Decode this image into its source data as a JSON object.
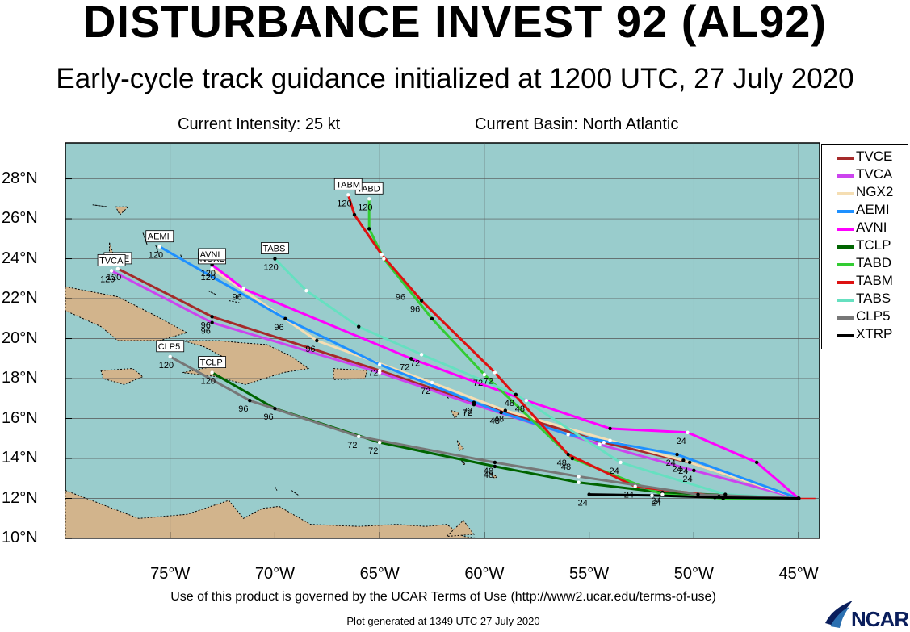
{
  "title": "DISTURBANCE INVEST 92 (AL92)",
  "subtitle": "Early-cycle track guidance initialized at 1200 UTC, 27 July 2020",
  "current_intensity": "Current Intensity: 25 kt",
  "current_basin": "Current Basin: North Atlantic",
  "terms": "Use of this product is governed by the UCAR Terms of Use (http://www2.ucar.edu/terms-of-use)",
  "generated": "Plot generated at 1349 UTC   27 July 2020",
  "logo_text": "NCAR",
  "colors": {
    "ocean": "#99cccc",
    "land": "#d2b48c",
    "grid": "#555555"
  },
  "chart_data": {
    "type": "line",
    "lon_range": [
      -80,
      -44
    ],
    "lat_range": [
      10,
      29.8
    ],
    "x_ticks": [
      -75,
      -70,
      -65,
      -60,
      -55,
      -50,
      -45
    ],
    "x_tick_labels": [
      "75°W",
      "70°W",
      "65°W",
      "60°W",
      "55°W",
      "50°W",
      "45°W"
    ],
    "y_ticks": [
      10,
      12,
      14,
      16,
      18,
      20,
      22,
      24,
      26,
      28
    ],
    "y_tick_labels": [
      "10°N",
      "12°N",
      "14°N",
      "16°N",
      "18°N",
      "20°N",
      "22°N",
      "24°N",
      "26°N",
      "28°N"
    ],
    "legend_position": "right",
    "series": [
      {
        "name": "TVCE",
        "color": "#a52a2a",
        "end_label": "TVCE",
        "points": [
          [
            -45,
            12
          ],
          [
            -50.2,
            13.8
          ],
          [
            -54.3,
            14.8
          ],
          [
            -60.5,
            16.8
          ],
          [
            -65,
            18.4
          ],
          [
            -73,
            21.1
          ],
          [
            -77.5,
            23.5
          ]
        ],
        "hour_labels": [
          [
            -50.2,
            13.8,
            "24"
          ],
          [
            -60.5,
            16.8,
            "72"
          ],
          [
            -73,
            21.1,
            "96"
          ],
          [
            -77.5,
            23.5,
            "120"
          ]
        ]
      },
      {
        "name": "TVCA",
        "color": "#cc44ee",
        "end_label": "TVCA",
        "points": [
          [
            -45,
            12
          ],
          [
            -50,
            13.4
          ],
          [
            -54.5,
            14.7
          ],
          [
            -60.5,
            16.7
          ],
          [
            -65,
            18.3
          ],
          [
            -73,
            20.8
          ],
          [
            -77.8,
            23.4
          ]
        ],
        "hour_labels": [
          [
            -50,
            13.4,
            "24"
          ],
          [
            -60.5,
            16.7,
            "72"
          ],
          [
            -73,
            20.8,
            "96"
          ],
          [
            -77.8,
            23.4,
            "120"
          ]
        ]
      },
      {
        "name": "NGX2",
        "color": "#f5deb3",
        "end_label": "NGX2",
        "points": [
          [
            -45,
            12
          ],
          [
            -50.5,
            13.9
          ],
          [
            -54,
            14.9
          ],
          [
            -59,
            16.4
          ],
          [
            -62.5,
            17.8
          ],
          [
            -68,
            19.9
          ],
          [
            -73,
            23.5
          ]
        ],
        "hour_labels": [
          [
            -50.5,
            13.9,
            "24"
          ],
          [
            -59,
            16.4,
            "48"
          ],
          [
            -62.5,
            17.8,
            "72"
          ],
          [
            -68,
            19.9,
            "96"
          ],
          [
            -73,
            23.5,
            "120"
          ]
        ]
      },
      {
        "name": "AEMI",
        "color": "#1e90ff",
        "end_label": "AEMI",
        "points": [
          [
            -45,
            12
          ],
          [
            -50.8,
            14.2
          ],
          [
            -56,
            15.2
          ],
          [
            -59.2,
            16.3
          ],
          [
            -65,
            18.7
          ],
          [
            -69.5,
            21
          ],
          [
            -75.5,
            24.6
          ]
        ],
        "hour_labels": [
          [
            -50.8,
            14.2,
            "24"
          ],
          [
            -59.2,
            16.3,
            "48"
          ],
          [
            -65,
            18.7,
            "72"
          ],
          [
            -69.5,
            21,
            "96"
          ],
          [
            -75.5,
            24.6,
            "120"
          ]
        ]
      },
      {
        "name": "AVNI",
        "color": "#ff00ff",
        "end_label": "AVNI",
        "points": [
          [
            -45,
            12
          ],
          [
            -47,
            13.8
          ],
          [
            -50.3,
            15.3
          ],
          [
            -54,
            15.5
          ],
          [
            -58,
            16.9
          ],
          [
            -63.5,
            19
          ],
          [
            -71.5,
            22.5
          ],
          [
            -73,
            23.7
          ]
        ],
        "hour_labels": [
          [
            -50.3,
            15.3,
            "24"
          ],
          [
            -58,
            16.9,
            "48"
          ],
          [
            -63.5,
            19,
            "72"
          ],
          [
            -71.5,
            22.5,
            "96"
          ],
          [
            -73,
            23.7,
            "120"
          ]
        ]
      },
      {
        "name": "TCLP",
        "color": "#006400",
        "end_label": "TCLP",
        "points": [
          [
            -45,
            12
          ],
          [
            -51.5,
            12.3
          ],
          [
            -55.5,
            12.8
          ],
          [
            -59.5,
            13.6
          ],
          [
            -65,
            14.8
          ],
          [
            -70,
            16.5
          ],
          [
            -73,
            18.3
          ]
        ],
        "hour_labels": [
          [
            -51.5,
            12.3,
            "24"
          ],
          [
            -59.5,
            13.6,
            "48"
          ],
          [
            -65,
            14.8,
            "72"
          ],
          [
            -70,
            16.5,
            "96"
          ],
          [
            -73,
            18.3,
            "120"
          ]
        ]
      },
      {
        "name": "TABD",
        "color": "#33cc33",
        "end_label": "TABD",
        "points": [
          [
            -45,
            12
          ],
          [
            -48.6,
            12
          ],
          [
            -51.5,
            12.2
          ],
          [
            -55.8,
            14
          ],
          [
            -60,
            18.2
          ],
          [
            -62.5,
            21
          ],
          [
            -64.8,
            24
          ],
          [
            -65.5,
            25.5
          ],
          [
            -65.5,
            27
          ]
        ],
        "hour_labels": [
          [
            -51.5,
            12.2,
            "24"
          ],
          [
            -55.8,
            14,
            "48"
          ],
          [
            -60,
            18.2,
            "72"
          ],
          [
            -63.7,
            22.5,
            "96"
          ],
          [
            -65.5,
            27,
            "120"
          ]
        ]
      },
      {
        "name": "TABM",
        "color": "#dd1111",
        "end_label": "TABM",
        "points": [
          [
            -45,
            12
          ],
          [
            -48.8,
            12.1
          ],
          [
            -52.8,
            12.6
          ],
          [
            -56,
            14.2
          ],
          [
            -59.5,
            18.3
          ],
          [
            -63,
            21.9
          ],
          [
            -64.9,
            24.2
          ],
          [
            -66.2,
            26.2
          ],
          [
            -66.5,
            27.2
          ]
        ],
        "hour_labels": [
          [
            -52.8,
            12.6,
            "24"
          ],
          [
            -56,
            14.2,
            "48"
          ],
          [
            -59.5,
            18.3,
            "72"
          ],
          [
            -63,
            21.9,
            "96"
          ],
          [
            -66.5,
            27.2,
            "120"
          ]
        ]
      },
      {
        "name": "TABS",
        "color": "#66e0c0",
        "end_label": "TABS",
        "points": [
          [
            -45,
            12
          ],
          [
            -48.5,
            12.2
          ],
          [
            -53.5,
            13.8
          ],
          [
            -58.5,
            17.2
          ],
          [
            -63,
            19.2
          ],
          [
            -66,
            20.6
          ],
          [
            -68.5,
            22.4
          ],
          [
            -70,
            24
          ]
        ],
        "hour_labels": [
          [
            -53.5,
            13.8,
            "24"
          ],
          [
            -58.5,
            17.2,
            "48"
          ],
          [
            -63,
            19.2,
            "72"
          ],
          [
            -70,
            24,
            "120"
          ]
        ]
      },
      {
        "name": "CLP5",
        "color": "#777777",
        "end_label": "CLP5",
        "points": [
          [
            -45,
            12
          ],
          [
            -49.8,
            12.2
          ],
          [
            -55.5,
            13.1
          ],
          [
            -59.5,
            13.8
          ],
          [
            -66,
            15.1
          ],
          [
            -71.2,
            16.9
          ],
          [
            -75,
            19.1
          ]
        ],
        "hour_labels": [
          [
            -59.5,
            13.8,
            "48"
          ],
          [
            -66,
            15.1,
            "72"
          ],
          [
            -71.2,
            16.9,
            "96"
          ],
          [
            -75,
            19.1,
            "120"
          ]
        ]
      },
      {
        "name": "XTRP",
        "color": "#000000",
        "end_label": "",
        "points": [
          [
            -45,
            12
          ],
          [
            -49,
            12.05
          ],
          [
            -52,
            12.15
          ],
          [
            -55,
            12.2
          ]
        ],
        "hour_labels": [
          [
            -55,
            12.2,
            "24"
          ]
        ]
      }
    ]
  }
}
